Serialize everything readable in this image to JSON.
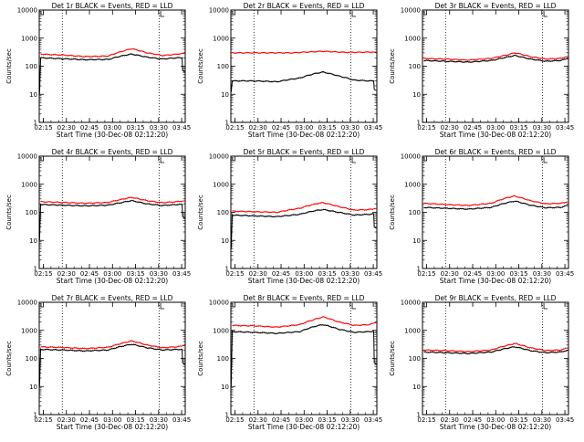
{
  "figure": {
    "colors": {
      "events": "#000000",
      "lld": "#ff0000",
      "axis": "#000000",
      "background": "#ffffff"
    }
  },
  "chart_data": [
    {
      "type": "line",
      "title": "Det 1r BLACK = Events, RED = LLD",
      "xlabel": "Start Time (30-Dec-08 02:12:20)",
      "ylabel": "Counts/sec",
      "x_ticks": [
        "02:15",
        "02:30",
        "02:45",
        "03:00",
        "03:15",
        "03:30",
        "03:45"
      ],
      "y_ticks": [
        "1",
        "10",
        "100",
        "1000",
        "10000"
      ],
      "y_scale": "log",
      "ylim": [
        1,
        10000
      ],
      "x_range_minutes": [
        0,
        95
      ],
      "markers_minutes": [
        15,
        78
      ],
      "series": [
        {
          "color": "#000000",
          "drop_start": 10,
          "drop_end": 70,
          "points": [
            [
              0,
              200
            ],
            [
              15,
              185
            ],
            [
              30,
              170
            ],
            [
              45,
              175
            ],
            [
              55,
              240
            ],
            [
              60,
              270
            ],
            [
              70,
              210
            ],
            [
              80,
              180
            ],
            [
              90,
              200
            ],
            [
              95,
              200
            ]
          ]
        },
        {
          "color": "#ff0000",
          "points": [
            [
              0,
              270
            ],
            [
              15,
              250
            ],
            [
              30,
              220
            ],
            [
              45,
              230
            ],
            [
              55,
              350
            ],
            [
              60,
              420
            ],
            [
              70,
              300
            ],
            [
              80,
              240
            ],
            [
              90,
              270
            ],
            [
              95,
              290
            ]
          ]
        }
      ]
    },
    {
      "type": "line",
      "title": "Det 2r BLACK = Events, RED = LLD",
      "xlabel": "Start Time (30-Dec-08 02:12:20)",
      "ylabel": "Counts/sec",
      "x_ticks": [
        "02:15",
        "02:30",
        "02:45",
        "03:00",
        "03:15",
        "03:30",
        "03:45"
      ],
      "y_ticks": [
        "1",
        "10",
        "100",
        "1000",
        "10000"
      ],
      "y_scale": "log",
      "ylim": [
        1,
        10000
      ],
      "x_range_minutes": [
        0,
        95
      ],
      "markers_minutes": [
        15,
        78
      ],
      "series": [
        {
          "color": "#000000",
          "drop_start": 12,
          "drop_end": 15,
          "points": [
            [
              0,
              30
            ],
            [
              15,
              30
            ],
            [
              30,
              28
            ],
            [
              45,
              38
            ],
            [
              55,
              55
            ],
            [
              60,
              62
            ],
            [
              70,
              45
            ],
            [
              80,
              32
            ],
            [
              90,
              30
            ],
            [
              95,
              30
            ]
          ]
        },
        {
          "color": "#ff0000",
          "points": [
            [
              0,
              300
            ],
            [
              20,
              300
            ],
            [
              40,
              300
            ],
            [
              55,
              330
            ],
            [
              60,
              340
            ],
            [
              75,
              310
            ],
            [
              95,
              320
            ]
          ]
        }
      ]
    },
    {
      "type": "line",
      "title": "Det 3r BLACK = Events, RED = LLD",
      "xlabel": "Start Time (30-Dec-08 02:12:20)",
      "ylabel": "Counts/sec",
      "x_ticks": [
        "02:15",
        "02:30",
        "02:45",
        "03:00",
        "03:15",
        "03:30",
        "03:45"
      ],
      "y_ticks": [
        "1",
        "10",
        "100",
        "1000",
        "10000"
      ],
      "y_scale": "log",
      "ylim": [
        1,
        10000
      ],
      "x_range_minutes": [
        0,
        95
      ],
      "markers_minutes": [
        15,
        78
      ],
      "series": [
        {
          "color": "#000000",
          "drop_start": 0,
          "drop_end": 0,
          "points": [
            [
              0,
              160
            ],
            [
              15,
              150
            ],
            [
              30,
              140
            ],
            [
              45,
              160
            ],
            [
              55,
              210
            ],
            [
              60,
              240
            ],
            [
              70,
              180
            ],
            [
              80,
              150
            ],
            [
              90,
              160
            ],
            [
              95,
              190
            ]
          ]
        },
        {
          "color": "#ff0000",
          "points": [
            [
              0,
              190
            ],
            [
              15,
              180
            ],
            [
              30,
              165
            ],
            [
              45,
              190
            ],
            [
              55,
              250
            ],
            [
              60,
              300
            ],
            [
              70,
              220
            ],
            [
              80,
              180
            ],
            [
              90,
              190
            ],
            [
              95,
              230
            ]
          ]
        }
      ]
    },
    {
      "type": "line",
      "title": "Det 4r BLACK = Events, RED = LLD",
      "xlabel": "Start Time (30-Dec-08 02:12:20)",
      "ylabel": "Counts/sec",
      "x_ticks": [
        "02:15",
        "02:30",
        "02:45",
        "03:00",
        "03:15",
        "03:30",
        "03:45"
      ],
      "y_ticks": [
        "1",
        "10",
        "100",
        "1000",
        "10000"
      ],
      "y_scale": "log",
      "ylim": [
        1,
        10000
      ],
      "x_range_minutes": [
        0,
        95
      ],
      "markers_minutes": [
        15,
        78
      ],
      "series": [
        {
          "color": "#000000",
          "drop_start": 10,
          "drop_end": 70,
          "points": [
            [
              0,
              190
            ],
            [
              15,
              180
            ],
            [
              30,
              170
            ],
            [
              45,
              180
            ],
            [
              55,
              230
            ],
            [
              60,
              260
            ],
            [
              70,
              200
            ],
            [
              80,
              175
            ],
            [
              90,
              190
            ],
            [
              95,
              190
            ]
          ]
        },
        {
          "color": "#ff0000",
          "points": [
            [
              0,
              240
            ],
            [
              15,
              225
            ],
            [
              30,
              210
            ],
            [
              45,
              225
            ],
            [
              55,
              300
            ],
            [
              60,
              340
            ],
            [
              70,
              260
            ],
            [
              80,
              220
            ],
            [
              90,
              240
            ],
            [
              95,
              260
            ]
          ]
        }
      ]
    },
    {
      "type": "line",
      "title": "Det 5r BLACK = Events, RED = LLD",
      "xlabel": "Start Time (30-Dec-08 02:12:20)",
      "ylabel": "Counts/sec",
      "x_ticks": [
        "02:15",
        "02:30",
        "02:45",
        "03:00",
        "03:15",
        "03:30",
        "03:45"
      ],
      "y_ticks": [
        "1",
        "10",
        "100",
        "1000",
        "10000"
      ],
      "y_scale": "log",
      "ylim": [
        1,
        10000
      ],
      "x_range_minutes": [
        0,
        95
      ],
      "markers_minutes": [
        15,
        78
      ],
      "series": [
        {
          "color": "#000000",
          "drop_start": 5,
          "drop_end": 30,
          "points": [
            [
              0,
              80
            ],
            [
              15,
              75
            ],
            [
              30,
              70
            ],
            [
              45,
              85
            ],
            [
              55,
              115
            ],
            [
              60,
              125
            ],
            [
              70,
              100
            ],
            [
              80,
              80
            ],
            [
              90,
              85
            ],
            [
              95,
              90
            ]
          ]
        },
        {
          "color": "#ff0000",
          "points": [
            [
              0,
              110
            ],
            [
              15,
              105
            ],
            [
              30,
              100
            ],
            [
              45,
              140
            ],
            [
              55,
              200
            ],
            [
              60,
              220
            ],
            [
              70,
              160
            ],
            [
              80,
              120
            ],
            [
              90,
              125
            ],
            [
              95,
              140
            ]
          ]
        }
      ]
    },
    {
      "type": "line",
      "title": "Det 6r BLACK = Events, RED = LLD",
      "xlabel": "Start Time (30-Dec-08 02:12:20)",
      "ylabel": "Counts/sec",
      "x_ticks": [
        "02:15",
        "02:30",
        "02:45",
        "03:00",
        "03:15",
        "03:30",
        "03:45"
      ],
      "y_ticks": [
        "1",
        "10",
        "100",
        "1000",
        "10000"
      ],
      "y_scale": "log",
      "ylim": [
        1,
        10000
      ],
      "x_range_minutes": [
        0,
        95
      ],
      "markers_minutes": [
        15,
        78
      ],
      "series": [
        {
          "color": "#000000",
          "drop_start": 0,
          "drop_end": 0,
          "points": [
            [
              0,
              150
            ],
            [
              15,
              140
            ],
            [
              30,
              130
            ],
            [
              45,
              150
            ],
            [
              55,
              220
            ],
            [
              60,
              250
            ],
            [
              70,
              180
            ],
            [
              80,
              145
            ],
            [
              90,
              150
            ],
            [
              95,
              180
            ]
          ]
        },
        {
          "color": "#ff0000",
          "points": [
            [
              0,
              210
            ],
            [
              15,
              190
            ],
            [
              30,
              175
            ],
            [
              45,
              210
            ],
            [
              55,
              330
            ],
            [
              60,
              380
            ],
            [
              70,
              260
            ],
            [
              80,
              200
            ],
            [
              90,
              210
            ],
            [
              95,
              240
            ]
          ]
        }
      ]
    },
    {
      "type": "line",
      "title": "Det 7r BLACK = Events, RED = LLD",
      "xlabel": "Start Time (30-Dec-08 02:12:20)",
      "ylabel": "Counts/sec",
      "x_ticks": [
        "02:15",
        "02:30",
        "02:45",
        "03:00",
        "03:15",
        "03:30",
        "03:45"
      ],
      "y_ticks": [
        "1",
        "10",
        "100",
        "1000",
        "10000"
      ],
      "y_scale": "log",
      "ylim": [
        1,
        10000
      ],
      "x_range_minutes": [
        0,
        95
      ],
      "markers_minutes": [
        15,
        78
      ],
      "series": [
        {
          "color": "#000000",
          "drop_start": 10,
          "drop_end": 70,
          "points": [
            [
              0,
              210
            ],
            [
              15,
              200
            ],
            [
              30,
              185
            ],
            [
              45,
              200
            ],
            [
              55,
              280
            ],
            [
              60,
              320
            ],
            [
              70,
              240
            ],
            [
              80,
              200
            ],
            [
              90,
              210
            ],
            [
              95,
              210
            ]
          ]
        },
        {
          "color": "#ff0000",
          "points": [
            [
              0,
              260
            ],
            [
              15,
              245
            ],
            [
              30,
              225
            ],
            [
              45,
              250
            ],
            [
              55,
              360
            ],
            [
              60,
              420
            ],
            [
              70,
              300
            ],
            [
              80,
              240
            ],
            [
              90,
              260
            ],
            [
              95,
              290
            ]
          ]
        }
      ]
    },
    {
      "type": "line",
      "title": "Det 8r BLACK = Events, RED = LLD",
      "xlabel": "Start Time (30-Dec-08 02:12:20)",
      "ylabel": "Counts/sec",
      "x_ticks": [
        "02:15",
        "02:30",
        "02:45",
        "03:00",
        "03:15",
        "03:30",
        "03:45"
      ],
      "y_ticks": [
        "1",
        "10",
        "100",
        "1000",
        "10000"
      ],
      "y_scale": "log",
      "ylim": [
        1,
        10000
      ],
      "x_range_minutes": [
        0,
        95
      ],
      "markers_minutes": [
        15,
        78
      ],
      "series": [
        {
          "color": "#000000",
          "drop_start": 10,
          "drop_end": 70,
          "points": [
            [
              0,
              900
            ],
            [
              15,
              850
            ],
            [
              30,
              780
            ],
            [
              45,
              900
            ],
            [
              55,
              1400
            ],
            [
              60,
              1600
            ],
            [
              70,
              1100
            ],
            [
              80,
              850
            ],
            [
              90,
              900
            ],
            [
              95,
              950
            ]
          ]
        },
        {
          "color": "#ff0000",
          "points": [
            [
              0,
              1500
            ],
            [
              15,
              1450
            ],
            [
              30,
              1300
            ],
            [
              45,
              1600
            ],
            [
              55,
              2500
            ],
            [
              60,
              3000
            ],
            [
              70,
              2000
            ],
            [
              80,
              1500
            ],
            [
              90,
              1600
            ],
            [
              95,
              1900
            ]
          ]
        }
      ]
    },
    {
      "type": "line",
      "title": "Det 9r BLACK = Events, RED = LLD",
      "xlabel": "Start Time (30-Dec-08 02:12:20)",
      "ylabel": "Counts/sec",
      "x_ticks": [
        "02:15",
        "02:30",
        "02:45",
        "03:00",
        "03:15",
        "03:30",
        "03:45"
      ],
      "y_ticks": [
        "1",
        "10",
        "100",
        "1000",
        "10000"
      ],
      "y_scale": "log",
      "ylim": [
        1,
        10000
      ],
      "x_range_minutes": [
        0,
        95
      ],
      "markers_minutes": [
        15,
        78
      ],
      "series": [
        {
          "color": "#000000",
          "drop_start": 0,
          "drop_end": 0,
          "points": [
            [
              0,
              170
            ],
            [
              15,
              160
            ],
            [
              30,
              150
            ],
            [
              45,
              170
            ],
            [
              55,
              230
            ],
            [
              60,
              260
            ],
            [
              70,
              190
            ],
            [
              80,
              160
            ],
            [
              90,
              170
            ],
            [
              95,
              200
            ]
          ]
        },
        {
          "color": "#ff0000",
          "points": [
            [
              0,
              200
            ],
            [
              15,
              190
            ],
            [
              30,
              175
            ],
            [
              45,
              200
            ],
            [
              55,
              290
            ],
            [
              60,
              340
            ],
            [
              70,
              240
            ],
            [
              80,
              190
            ],
            [
              90,
              200
            ],
            [
              95,
              240
            ]
          ]
        }
      ]
    }
  ]
}
